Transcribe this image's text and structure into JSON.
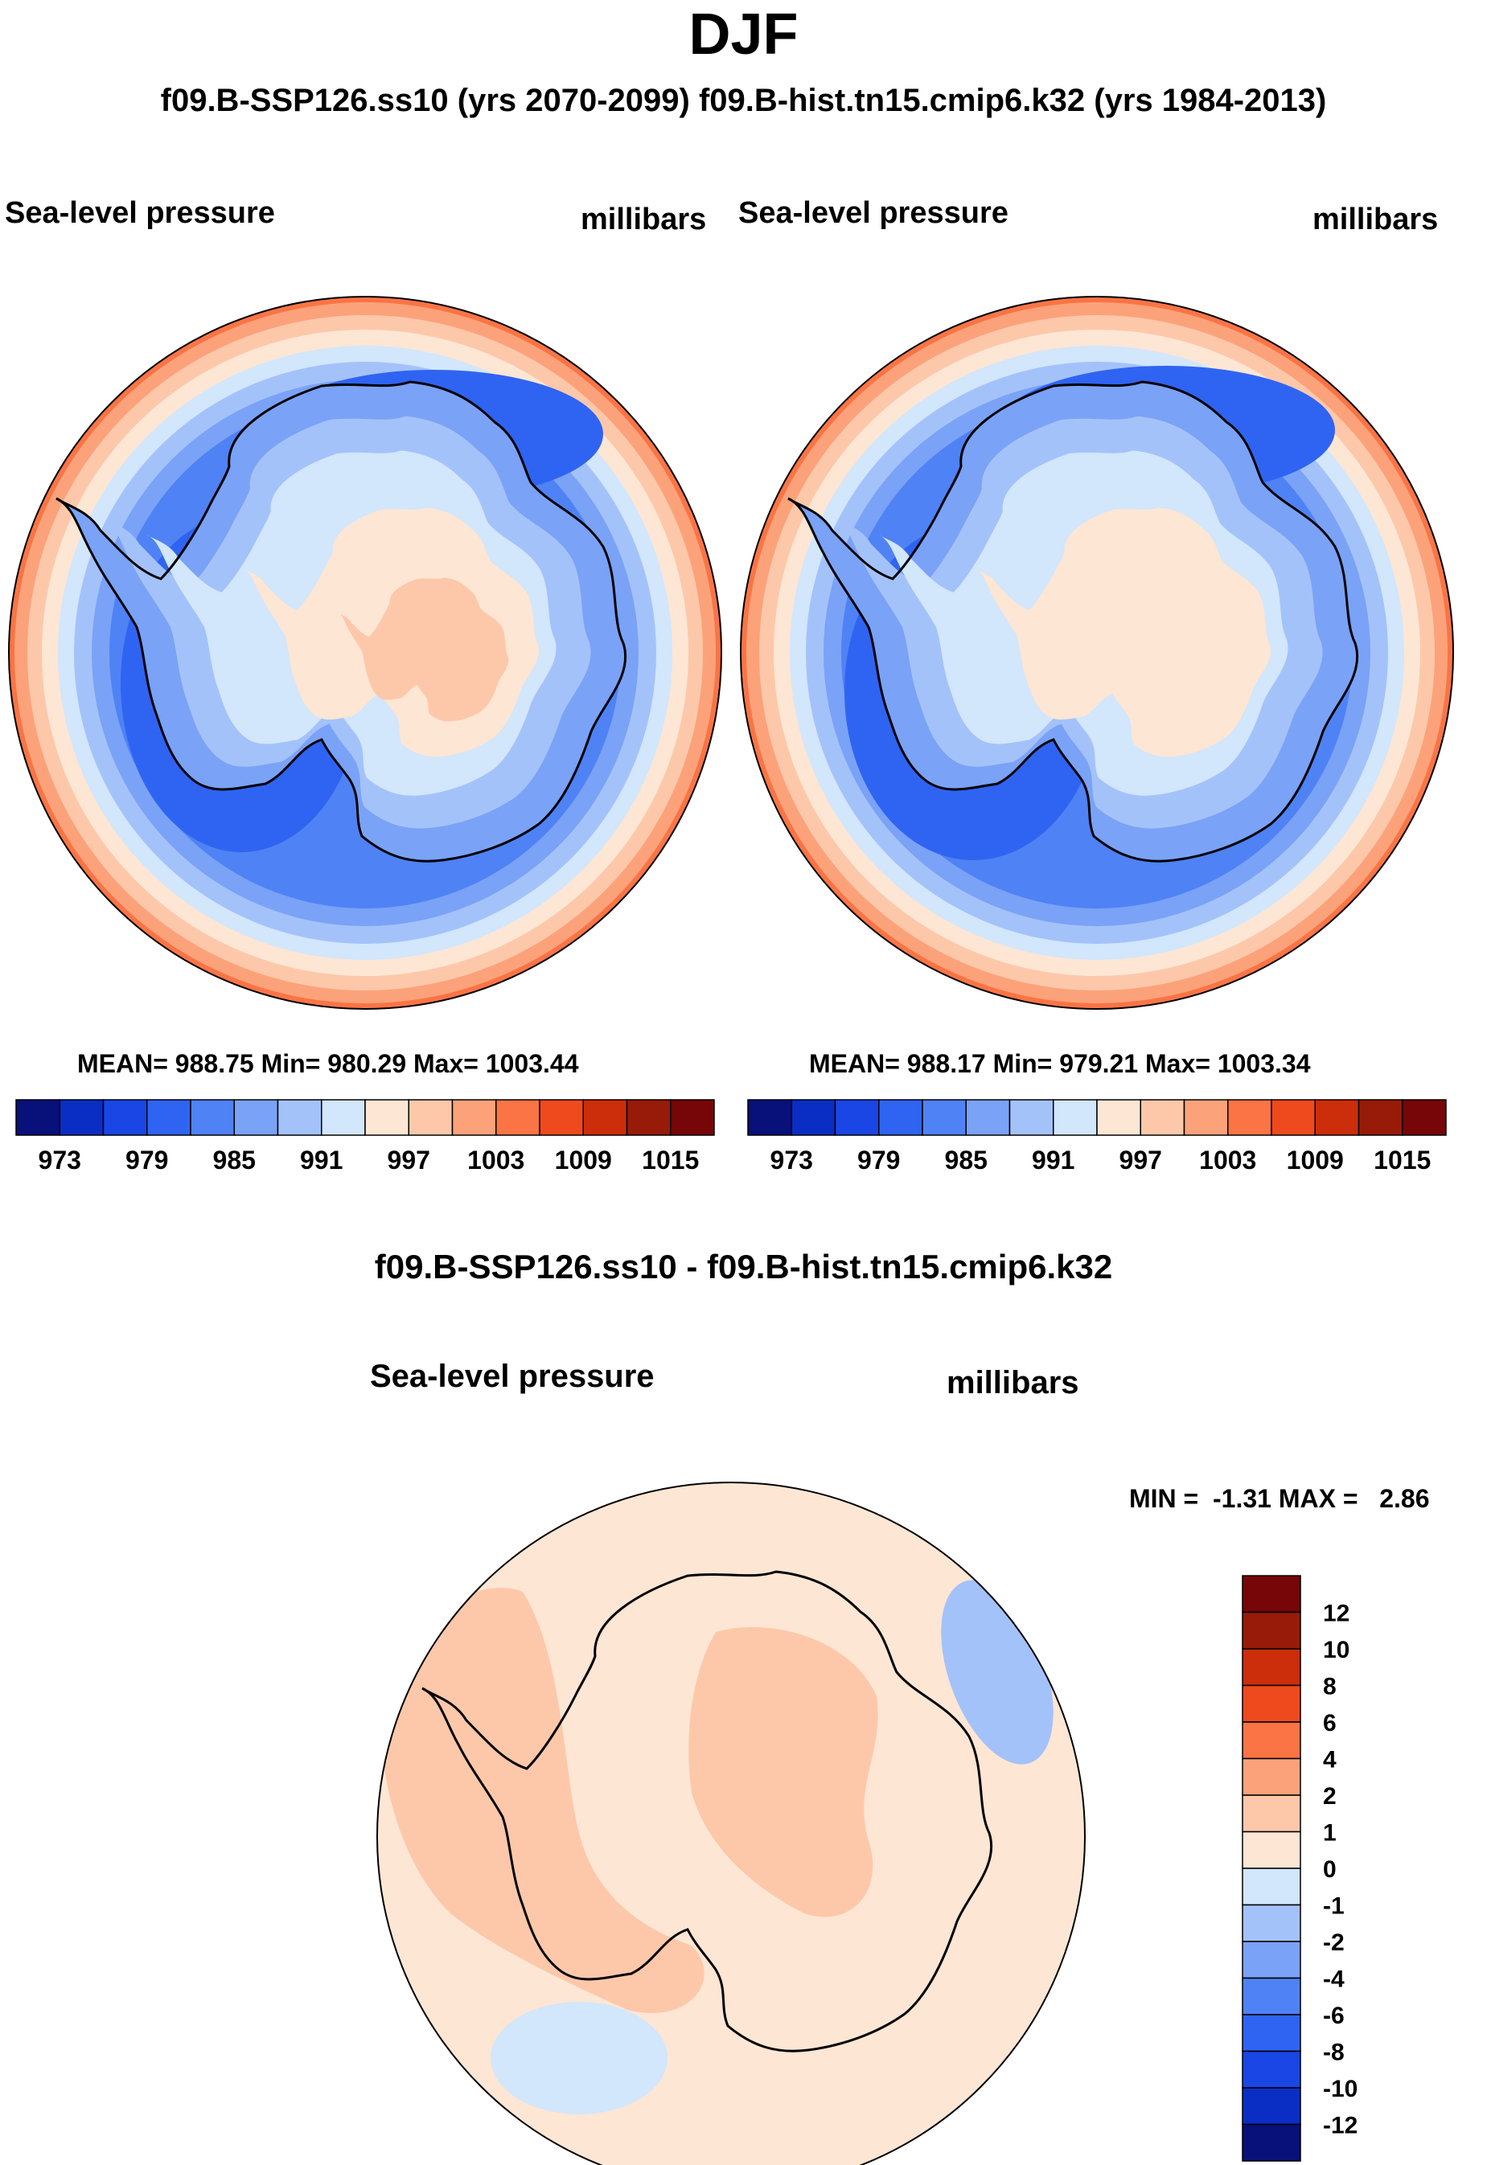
{
  "figure": {
    "season": "DJF",
    "header": "f09.B-SSP126.ss10 (yrs 2070-2099)  f09.B-hist.tn15.cmip6.k32 (yrs 1984-2013)",
    "diff_title": "f09.B-SSP126.ss10 - f09.B-hist.tn15.cmip6.k32"
  },
  "colors": {
    "abs_levels": [
      "#08107a",
      "#0a2ec4",
      "#1a46e6",
      "#2f64f2",
      "#4f82f4",
      "#7aa2f6",
      "#a4c2fa",
      "#d2e6fc",
      "#fde6d4",
      "#fdc8aa",
      "#fca27a",
      "#fa7445",
      "#ef4a1e",
      "#cc2d0b",
      "#981a08",
      "#760608"
    ],
    "diff_levels": [
      "#08107a",
      "#0a2ec4",
      "#1a46e6",
      "#2f64f2",
      "#4f82f4",
      "#7aa2f6",
      "#a4c2fa",
      "#d2e6fc",
      "#fde6d4",
      "#fdc8aa",
      "#fca27a",
      "#fa7445",
      "#ef4a1e",
      "#cc2d0b",
      "#981a08",
      "#760608"
    ],
    "land_outline": "#000000"
  },
  "panels": [
    {
      "variable": "Sea-level pressure",
      "units": "millibars",
      "stats": "MEAN= 988.75  Min= 980.29  Max= 1003.44",
      "mean": 988.75,
      "min": 980.29,
      "max": 1003.44
    },
    {
      "variable": "Sea-level pressure",
      "units": "millibars",
      "stats": "MEAN= 988.17  Min= 979.21  Max= 1003.34",
      "mean": 988.17,
      "min": 979.21,
      "max": 1003.34
    }
  ],
  "abs_colorbar_labels": [
    "973",
    "979",
    "985",
    "991",
    "997",
    "1003",
    "1009",
    "1015"
  ],
  "diff_panel": {
    "variable": "Sea-level pressure",
    "units": "millibars",
    "stats": "MIN =  -1.31 MAX =   2.86",
    "min": -1.31,
    "max": 2.86
  },
  "diff_colorbar_labels": [
    "12",
    "10",
    "8",
    "6",
    "4",
    "2",
    "1",
    "0",
    "-1",
    "-2",
    "-4",
    "-6",
    "-8",
    "-10",
    "-12"
  ]
}
